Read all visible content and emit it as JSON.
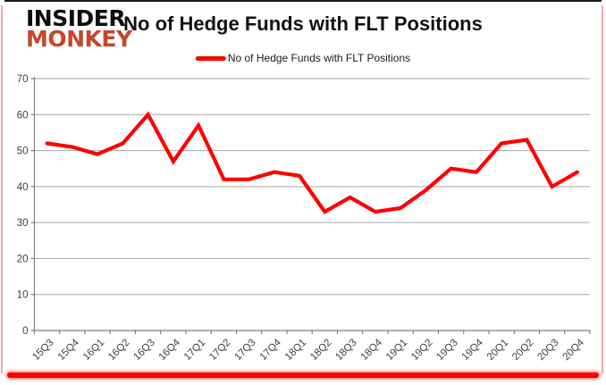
{
  "logo": {
    "line1": "INSIDER",
    "line2": "MONKEY"
  },
  "header": {
    "title": "No of Hedge Funds with FLT Positions"
  },
  "legend": {
    "label": "No of Hedge Funds with FLT Positions"
  },
  "colors": {
    "series_line": "#ff0000",
    "gridline": "#a6a6a6",
    "axis": "#7f7f7f",
    "tick_text": "#3f3f3f",
    "logo_black": "#0d0d0d",
    "logo_red": "#c5472d",
    "frame_bottom_bar": "#ff0000",
    "frame_side": "#f2abab",
    "frame_top": "#1a1a1a"
  },
  "chart_data": {
    "type": "line",
    "title": "No of Hedge Funds with FLT Positions",
    "categories": [
      "15Q3",
      "15Q4",
      "16Q1",
      "16Q2",
      "16Q3",
      "16Q4",
      "17Q1",
      "17Q2",
      "17Q3",
      "17Q4",
      "18Q1",
      "18Q2",
      "18Q3",
      "18Q4",
      "19Q1",
      "19Q2",
      "19Q3",
      "19Q4",
      "20Q1",
      "20Q2",
      "20Q3",
      "20Q4"
    ],
    "series": [
      {
        "name": "No of Hedge Funds with FLT Positions",
        "color": "#ff0000",
        "values": [
          52,
          51,
          49,
          52,
          60,
          47,
          57,
          42,
          42,
          44,
          43,
          33,
          37,
          33,
          34,
          39,
          45,
          44,
          52,
          53,
          40,
          44
        ]
      }
    ],
    "xlabel": "",
    "ylabel": "",
    "ylim": [
      0,
      70
    ],
    "yticks": [
      0,
      10,
      20,
      30,
      40,
      50,
      60,
      70
    ],
    "grid": true,
    "legend_position": "top-center",
    "x_tick_label_rotation_deg": -45
  }
}
